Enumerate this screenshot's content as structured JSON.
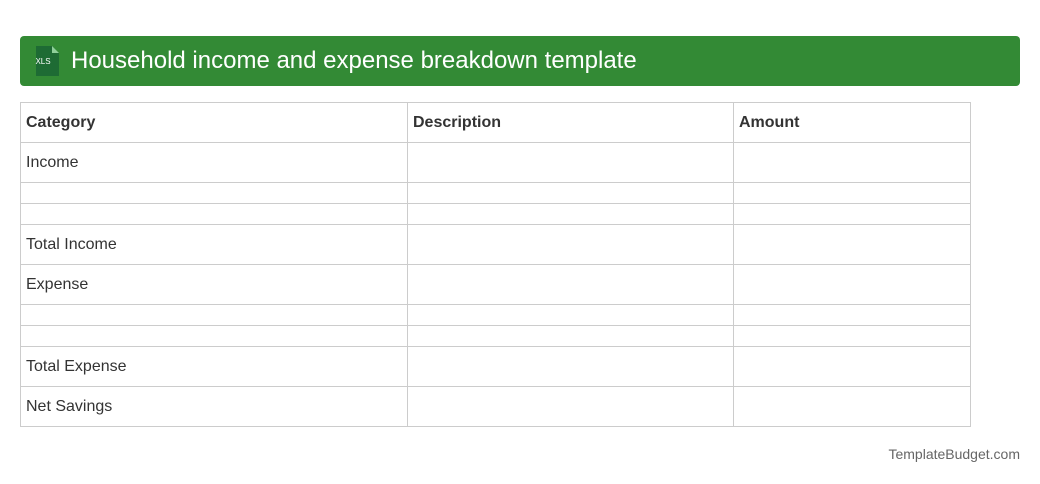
{
  "header": {
    "icon_label": "XLS",
    "title": "Household income and expense breakdown template"
  },
  "table": {
    "columns": [
      "Category",
      "Description",
      "Amount"
    ],
    "rows": [
      "Income",
      null,
      null,
      "Total Income",
      "Expense",
      null,
      null,
      "Total Expense",
      "Net Savings"
    ]
  },
  "footer": {
    "source": "TemplateBudget.com"
  }
}
